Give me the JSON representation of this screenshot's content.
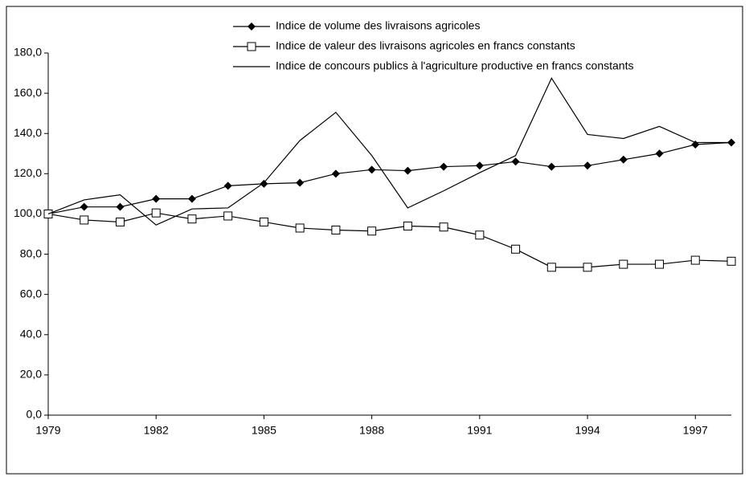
{
  "chart_data": {
    "type": "line",
    "x": [
      1979,
      1980,
      1981,
      1982,
      1983,
      1984,
      1985,
      1986,
      1987,
      1988,
      1989,
      1990,
      1991,
      1992,
      1993,
      1994,
      1995,
      1996,
      1997,
      1998
    ],
    "series": [
      {
        "name": "Indice de volume des livraisons agricoles",
        "color": "#000000",
        "marker": "diamond",
        "values": [
          100,
          103.5,
          103.5,
          107.5,
          107.5,
          114,
          115,
          115.5,
          120,
          122,
          121.5,
          123.5,
          124,
          126,
          123.5,
          124,
          127,
          130,
          134.5,
          135.5
        ]
      },
      {
        "name": "Indice de valeur des livraisons agricoles en francs constants",
        "color": "#000000",
        "marker": "square",
        "values": [
          100,
          97,
          96,
          100.5,
          97.5,
          99,
          96,
          93,
          92,
          91.5,
          94,
          93.5,
          89.5,
          82.5,
          73.5,
          73.5,
          75,
          75,
          77,
          76.5
        ]
      },
      {
        "name": "Indice de concours publics à l'agriculture productive en francs constants",
        "color": "#000000",
        "marker": "none",
        "values": [
          100,
          107,
          109.5,
          94.5,
          102.5,
          103,
          115.5,
          136.5,
          150.5,
          129,
          103,
          111.5,
          120.5,
          129,
          167.5,
          139.5,
          137.5,
          143.5,
          135.5,
          135.5
        ]
      }
    ],
    "xlim": [
      1979,
      1998
    ],
    "xticks": [
      1979,
      1982,
      1985,
      1988,
      1991,
      1994,
      1997
    ],
    "ylim": [
      0,
      180
    ],
    "yticks": [
      {
        "value": 0,
        "label": "0,0"
      },
      {
        "value": 20,
        "label": "20,0"
      },
      {
        "value": 40,
        "label": "40,0"
      },
      {
        "value": 60,
        "label": "60,0"
      },
      {
        "value": 80,
        "label": "80,0"
      },
      {
        "value": 100,
        "label": "100,0"
      },
      {
        "value": 120,
        "label": "120,0"
      },
      {
        "value": 140,
        "label": "140,0"
      },
      {
        "value": 160,
        "label": "160,0"
      },
      {
        "value": 180,
        "label": "180,0"
      }
    ],
    "grid": false,
    "legend": "top"
  }
}
